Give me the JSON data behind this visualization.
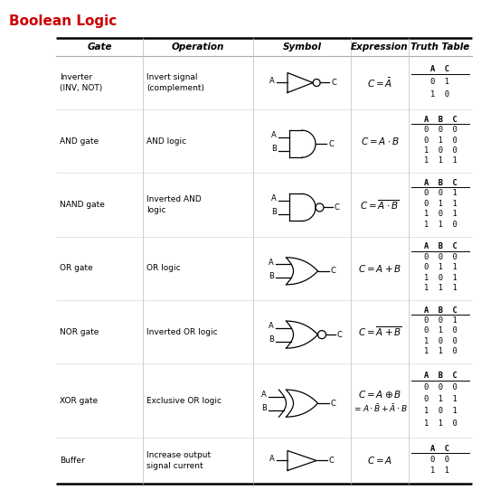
{
  "title": "Boolean Logic",
  "title_color": "#cc0000",
  "bg_color": "#ffffff",
  "header": [
    "Gate",
    "Operation",
    "Symbol",
    "Expression",
    "Truth Table"
  ],
  "rows": [
    {
      "gate": "Inverter\n(INV, NOT)",
      "operation": "Invert signal\n(complement)",
      "symbol_type": "NOT",
      "truth_table": "A  C\n0  1\n1  0",
      "tt_rows": 2
    },
    {
      "gate": "AND gate",
      "operation": "AND logic",
      "symbol_type": "AND",
      "truth_table": "A  B  C\n0  0  0\n0  1  0\n1  0  0\n1  1  1",
      "tt_rows": 4
    },
    {
      "gate": "NAND gate",
      "operation": "Inverted AND\nlogic",
      "symbol_type": "NAND",
      "truth_table": "A  B  C\n0  0  1\n0  1  1\n1  0  1\n1  1  0",
      "tt_rows": 4
    },
    {
      "gate": "OR gate",
      "operation": "OR logic",
      "symbol_type": "OR",
      "truth_table": "A  B  C\n0  0  0\n0  1  1\n1  0  1\n1  1  1",
      "tt_rows": 4
    },
    {
      "gate": "NOR gate",
      "operation": "Inverted OR logic",
      "symbol_type": "NOR",
      "truth_table": "A  B  C\n0  0  1\n0  1  0\n1  0  0\n1  1  0",
      "tt_rows": 4
    },
    {
      "gate": "XOR gate",
      "operation": "Exclusive OR logic",
      "symbol_type": "XOR",
      "truth_table": "A  B  C\n0  0  0\n0  1  1\n1  0  1\n1  1  0",
      "tt_rows": 4
    },
    {
      "gate": "Buffer",
      "operation": "Increase output\nsignal current",
      "symbol_type": "BUFFER",
      "truth_table": "A  C\n0  0\n1  1",
      "tt_rows": 2
    }
  ],
  "fig_width": 5.32,
  "fig_height": 5.42,
  "dpi": 100
}
